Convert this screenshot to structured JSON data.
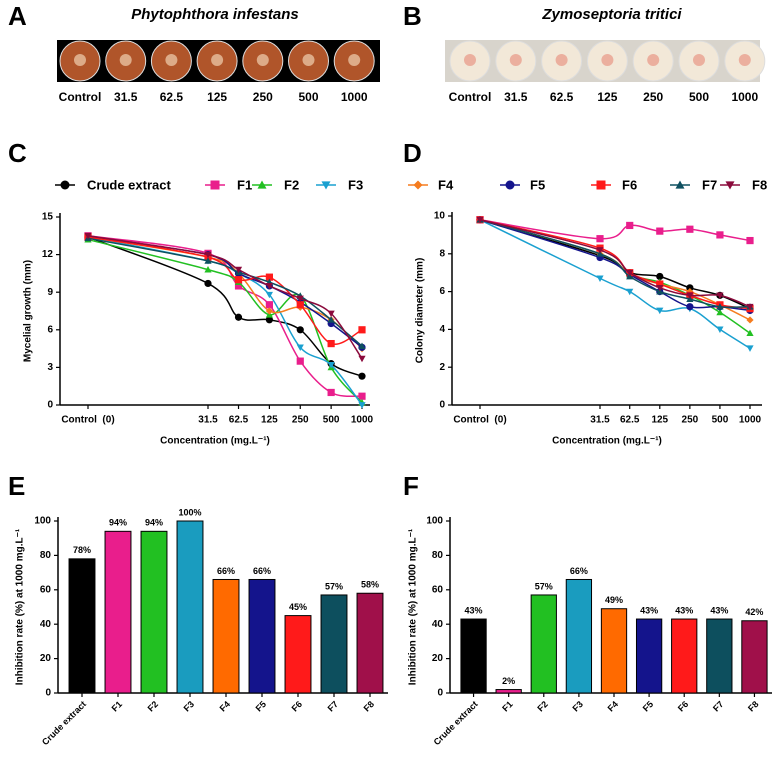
{
  "plates": [
    {
      "panel": "A",
      "title": "Phytophthora infestans",
      "labels": [
        "Control",
        "31.5",
        "62.5",
        "125",
        "250",
        "500",
        "1000"
      ]
    },
    {
      "panel": "B",
      "title": "Zymoseptoria tritici",
      "labels": [
        "Control",
        "31.5",
        "62.5",
        "125",
        "250",
        "500",
        "1000"
      ]
    }
  ],
  "chart_data": [
    {
      "panel": "C",
      "type": "scatter",
      "ylabel": "Mycelial growth (mm)",
      "xlabel": "Concentration (mg.L⁻¹)",
      "xscale": "log",
      "x": [
        0,
        31.5,
        62.5,
        125,
        250,
        500,
        1000
      ],
      "xlim": [
        0,
        1000
      ],
      "xticks": [
        {
          "value": 0,
          "label": "Control  (0)"
        },
        31.5,
        62.5,
        125,
        250,
        500,
        1000
      ],
      "ylim": [
        0,
        15
      ],
      "yticks": [
        0,
        3,
        6,
        9,
        12,
        15
      ],
      "legend": "top",
      "series": [
        {
          "name": "Crude extract",
          "color": "#000000",
          "marker": "circle",
          "values": [
            13.4,
            9.7,
            7.0,
            6.8,
            6.0,
            3.3,
            2.3
          ]
        },
        {
          "name": "F1",
          "color": "#e91e8c",
          "marker": "square",
          "values": [
            13.5,
            12.1,
            9.5,
            8.0,
            3.5,
            1.0,
            0.7
          ]
        },
        {
          "name": "F2",
          "color": "#22c022",
          "marker": "triangle",
          "values": [
            13.2,
            10.8,
            9.8,
            7.2,
            8.7,
            3.0,
            0.2
          ]
        },
        {
          "name": "F3",
          "color": "#1aa0d0",
          "marker": "down",
          "values": [
            13.4,
            11.5,
            10.5,
            8.8,
            4.6,
            3.2,
            0
          ]
        },
        {
          "name": "F4",
          "color": "#f57c1f",
          "marker": "diamond",
          "values": [
            13.4,
            11.8,
            10.5,
            7.5,
            7.8,
            6.8,
            4.5
          ]
        },
        {
          "name": "F5",
          "color": "#14148c",
          "marker": "circle",
          "values": [
            13.4,
            12.0,
            10.5,
            9.5,
            8.2,
            6.5,
            4.6
          ]
        },
        {
          "name": "F6",
          "color": "#ff1a1a",
          "marker": "square",
          "values": [
            13.4,
            11.8,
            10.0,
            10.2,
            8.0,
            4.9,
            6.0
          ]
        },
        {
          "name": "F7",
          "color": "#0e5060",
          "marker": "triangle",
          "values": [
            13.3,
            11.5,
            10.6,
            9.8,
            8.7,
            6.8,
            4.7
          ]
        },
        {
          "name": "F8",
          "color": "#8b0a3c",
          "marker": "down",
          "values": [
            13.5,
            12.0,
            10.8,
            9.5,
            8.5,
            7.3,
            3.7
          ]
        }
      ]
    },
    {
      "panel": "D",
      "type": "scatter",
      "ylabel": "Colony diameter (mm)",
      "xlabel": "Concentration (mg.L⁻¹)",
      "xscale": "log",
      "x": [
        0,
        31.5,
        62.5,
        125,
        250,
        500,
        1000
      ],
      "xlim": [
        0,
        1000
      ],
      "xticks": [
        {
          "value": 0,
          "label": "Control  (0)"
        },
        31.5,
        62.5,
        125,
        250,
        500,
        1000
      ],
      "ylim": [
        0,
        10
      ],
      "yticks": [
        0,
        2,
        4,
        6,
        8,
        10
      ],
      "series": [
        {
          "color": "#000000",
          "marker": "circle",
          "values": [
            9.8,
            7.9,
            7.0,
            6.8,
            6.2,
            5.8,
            5.1
          ]
        },
        {
          "color": "#e91e8c",
          "marker": "square",
          "values": [
            9.8,
            8.8,
            9.5,
            9.2,
            9.3,
            9.0,
            8.7
          ]
        },
        {
          "color": "#22c022",
          "marker": "triangle",
          "values": [
            9.8,
            8.0,
            6.9,
            6.5,
            5.8,
            4.9,
            3.8
          ]
        },
        {
          "color": "#1aa0d0",
          "marker": "down",
          "values": [
            9.8,
            6.7,
            6.0,
            5.0,
            5.1,
            4.0,
            3.0
          ]
        },
        {
          "color": "#f57c1f",
          "marker": "diamond",
          "values": [
            9.8,
            8.0,
            6.9,
            6.4,
            6.0,
            5.3,
            4.5
          ]
        },
        {
          "color": "#14148c",
          "marker": "circle",
          "values": [
            9.8,
            7.8,
            6.9,
            6.0,
            5.2,
            5.2,
            5.0
          ]
        },
        {
          "color": "#ff1a1a",
          "marker": "square",
          "values": [
            9.8,
            8.3,
            7.0,
            6.4,
            5.8,
            5.3,
            5.1
          ]
        },
        {
          "color": "#0e5060",
          "marker": "triangle",
          "values": [
            9.8,
            8.0,
            6.8,
            6.0,
            5.6,
            5.2,
            5.2
          ]
        },
        {
          "color": "#8b0a3c",
          "marker": "down",
          "values": [
            9.8,
            8.2,
            7.0,
            6.2,
            5.8,
            5.8,
            5.2
          ]
        }
      ]
    },
    {
      "panel": "E",
      "type": "bar",
      "ylabel": "Inhibition rate (%) at 1000 mg.L⁻¹",
      "categories": [
        "Crude extract",
        "F1",
        "F2",
        "F3",
        "F4",
        "F5",
        "F6",
        "F7",
        "F8"
      ],
      "values": [
        78,
        94,
        94,
        100,
        66,
        66,
        45,
        57,
        58
      ],
      "value_labels": [
        "78%",
        "94%",
        "94%",
        "100%",
        "66%",
        "66%",
        "45%",
        "57%",
        "58%"
      ],
      "colors": [
        "#000000",
        "#e91e8c",
        "#22c022",
        "#1a9cbf",
        "#ff6a00",
        "#14148c",
        "#ff1a1a",
        "#0d4f5e",
        "#a0104a"
      ],
      "ylim": [
        0,
        100
      ],
      "yticks": [
        0,
        20,
        40,
        60,
        80,
        100
      ]
    },
    {
      "panel": "F",
      "type": "bar",
      "ylabel": "Inhibition rate (%) at 1000 mg.L⁻¹",
      "categories": [
        "Crude extract",
        "F1",
        "F2",
        "F3",
        "F4",
        "F5",
        "F6",
        "F7",
        "F8"
      ],
      "values": [
        43,
        2,
        57,
        66,
        49,
        43,
        43,
        43,
        42
      ],
      "value_labels": [
        "43%",
        "2%",
        "57%",
        "66%",
        "49%",
        "43%",
        "43%",
        "43%",
        "42%"
      ],
      "colors": [
        "#000000",
        "#e91e8c",
        "#22c022",
        "#1a9cbf",
        "#ff6a00",
        "#14148c",
        "#ff1a1a",
        "#0d4f5e",
        "#a0104a"
      ],
      "ylim": [
        0,
        100
      ],
      "yticks": [
        0,
        20,
        40,
        60,
        80,
        100
      ]
    }
  ]
}
